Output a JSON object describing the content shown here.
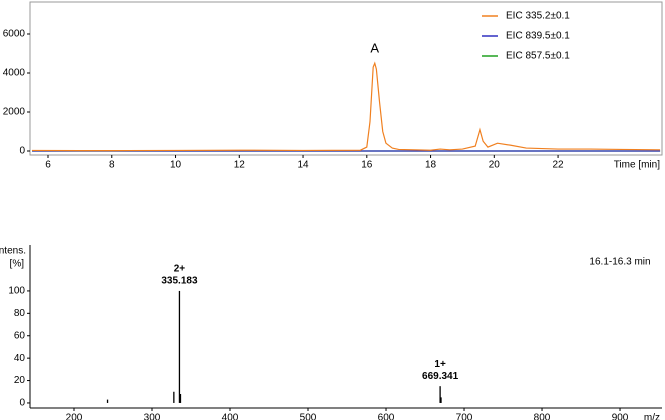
{
  "chart_data": [
    {
      "type": "line",
      "x": [
        5.5,
        7,
        8,
        10,
        12,
        14,
        15.8,
        16.0,
        16.1,
        16.2,
        16.25,
        16.3,
        16.4,
        16.5,
        16.6,
        16.8,
        17,
        18,
        18.3,
        18.6,
        19,
        19.4,
        19.55,
        19.65,
        19.8,
        20.1,
        20.5,
        21,
        22,
        23,
        24,
        25.2
      ],
      "series": [
        {
          "name": "EIC 335.2±0.1",
          "color": "#f08020",
          "values": [
            30,
            20,
            20,
            30,
            40,
            30,
            40,
            200,
            1500,
            4300,
            4500,
            4200,
            2500,
            1000,
            400,
            150,
            80,
            40,
            100,
            60,
            100,
            250,
            1100,
            500,
            200,
            400,
            300,
            150,
            100,
            100,
            80,
            60
          ]
        },
        {
          "name": "EIC 839.5±0.1",
          "color": "#3030c0",
          "values": [
            0,
            0,
            0,
            0,
            0,
            0,
            0,
            0,
            0,
            0,
            0,
            0,
            0,
            0,
            0,
            0,
            0,
            0,
            0,
            0,
            0,
            0,
            0,
            0,
            0,
            0,
            0,
            0,
            0,
            0,
            0,
            0
          ]
        },
        {
          "name": "EIC 857.5±0.1",
          "color": "#20a020",
          "values": [
            0,
            0,
            0,
            0,
            0,
            0,
            0,
            0,
            0,
            0,
            0,
            0,
            0,
            0,
            0,
            0,
            0,
            0,
            0,
            0,
            0,
            0,
            0,
            0,
            0,
            0,
            0,
            0,
            0,
            0,
            0,
            0
          ]
        }
      ],
      "xlim": [
        5.435,
        25.26
      ],
      "ylim": [
        -205,
        7640
      ],
      "xticks": [
        6,
        8,
        10,
        12,
        14,
        16,
        18,
        20,
        22
      ],
      "yticks": [
        0,
        2000,
        4000,
        6000
      ],
      "xlabel": "Time [min]",
      "annotation": "A",
      "legend": "upper right"
    },
    {
      "type": "stem",
      "x": [
        243,
        328,
        335.183,
        336.5,
        669.341,
        670.5
      ],
      "values": [
        3,
        10,
        100,
        8,
        15,
        5
      ],
      "charges": [
        null,
        null,
        "2+",
        null,
        "1+",
        null
      ],
      "color": "#000000",
      "xlim": [
        143.6,
        953.8
      ],
      "ylim": [
        -4.5,
        141
      ],
      "xticks": [
        200,
        300,
        400,
        500,
        600,
        700,
        800,
        900
      ],
      "yticks": [
        0,
        20,
        40,
        60,
        80,
        100
      ],
      "ylabel": [
        "Intens.",
        "[%]"
      ],
      "xlabel": "m/z",
      "annotation": "16.1-16.3 min"
    }
  ]
}
